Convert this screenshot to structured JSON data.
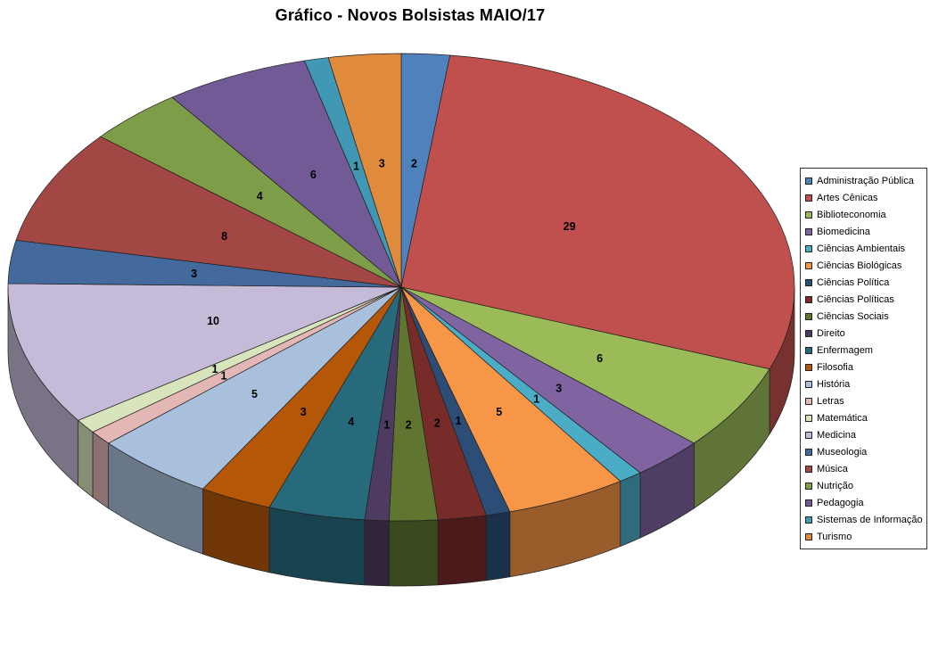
{
  "title": "Gráfico - Novos Bolsistas MAIO/17",
  "chart_data": {
    "type": "pie",
    "style": "3d-pie",
    "title": "Gráfico - Novos Bolsistas MAIO/17",
    "legend_position": "right",
    "data_labels": "values",
    "label_color": "#000000",
    "total": 101,
    "categories": [
      "Administração Pública",
      "Artes Cênicas",
      "Biblioteconomia",
      "Biomedicina",
      "Ciências Ambientais",
      "Ciências Biológicas",
      "Ciências Política",
      "Ciências Políticas",
      "Ciências Sociais",
      "Direito",
      "Enfermagem",
      "Filosofia",
      "História",
      "Letras",
      "Matemática",
      "Medicina",
      "Museologia",
      "Música",
      "Nutrição",
      "Pedagogia",
      "Sistemas de Informação",
      "Turismo"
    ],
    "values": [
      2,
      29,
      6,
      3,
      1,
      5,
      1,
      2,
      2,
      1,
      4,
      3,
      5,
      1,
      1,
      10,
      3,
      8,
      4,
      6,
      1,
      3
    ],
    "colors": [
      "#4F81BD",
      "#C0504D",
      "#9BBB59",
      "#8064A2",
      "#4BACC6",
      "#F79646",
      "#2C4D75",
      "#772C2A",
      "#5F7530",
      "#4D3B62",
      "#276A7C",
      "#B65708",
      "#A9C0DD",
      "#E3B7B5",
      "#D8E4BC",
      "#C5BAD8",
      "#44699D",
      "#A24744",
      "#7E9D49",
      "#715A96",
      "#4198B4",
      "#E08B3C"
    ]
  }
}
